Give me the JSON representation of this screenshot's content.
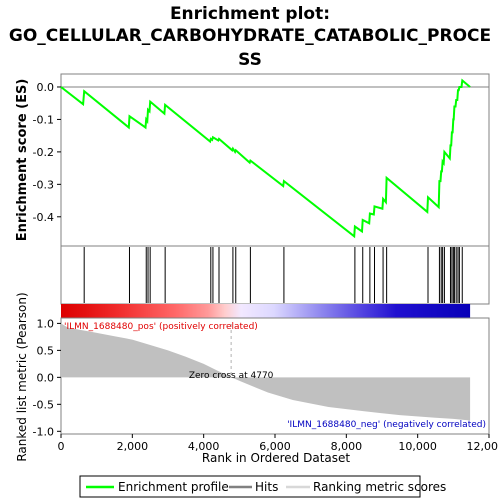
{
  "chart_data": {
    "type": "line",
    "title_lines": [
      "Enrichment plot:",
      "GO_CELLULAR_CARBOHYDRATE_CATABOLIC_PROCE",
      "SS"
    ],
    "xlabel": "Rank in Ordered Dataset",
    "xlim": [
      0,
      12000
    ],
    "x_ticks": [
      "0",
      "2,000",
      "4,000",
      "6,000",
      "8,000",
      "10,000",
      "12,00"
    ],
    "x_tick_values": [
      0,
      2000,
      4000,
      6000,
      8000,
      10000,
      12000
    ],
    "n_genes": 11470,
    "es_panel": {
      "ylabel": "Enrichment score (ES)",
      "ylim": [
        -0.49,
        0.04
      ],
      "y_ticks": [
        "0.0",
        "-0.1",
        "-0.2",
        "-0.3",
        "-0.4"
      ],
      "y_tick_values": [
        0.0,
        -0.1,
        -0.2,
        -0.3,
        -0.4
      ],
      "zero_line": true,
      "color": "#00ff00",
      "hits": [
        650,
        1920,
        2390,
        2440,
        2500,
        2920,
        4200,
        4260,
        4430,
        4820,
        4900,
        5310,
        6250,
        8240,
        8460,
        8660,
        8790,
        9030,
        9130,
        10290,
        10610,
        10660,
        10700,
        10750,
        10920,
        10960,
        11000,
        11030,
        11080,
        11130,
        11170,
        11250
      ],
      "x": [
        0,
        620,
        650,
        1900,
        1920,
        2370,
        2390,
        2420,
        2440,
        2480,
        2500,
        2900,
        2920,
        4180,
        4200,
        4240,
        4260,
        4410,
        4430,
        4800,
        4820,
        4880,
        4900,
        5290,
        5310,
        6230,
        6250,
        8220,
        8240,
        8440,
        8460,
        8640,
        8660,
        8770,
        8790,
        9010,
        9030,
        9110,
        9130,
        10270,
        10290,
        10590,
        10610,
        10640,
        10660,
        10680,
        10700,
        10730,
        10750,
        10900,
        10920,
        10940,
        10960,
        10980,
        11000,
        11010,
        11030,
        11060,
        11080,
        11110,
        11130,
        11150,
        11170,
        11230,
        11250,
        11470
      ],
      "y": [
        0.0,
        -0.053,
        -0.013,
        -0.125,
        -0.09,
        -0.125,
        -0.1,
        -0.105,
        -0.07,
        -0.075,
        -0.045,
        -0.082,
        -0.055,
        -0.168,
        -0.16,
        -0.163,
        -0.155,
        -0.165,
        -0.16,
        -0.195,
        -0.19,
        -0.2,
        -0.195,
        -0.233,
        -0.227,
        -0.305,
        -0.29,
        -0.46,
        -0.43,
        -0.445,
        -0.41,
        -0.42,
        -0.39,
        -0.393,
        -0.368,
        -0.375,
        -0.345,
        -0.355,
        -0.28,
        -0.385,
        -0.34,
        -0.37,
        -0.29,
        -0.29,
        -0.26,
        -0.26,
        -0.23,
        -0.235,
        -0.2,
        -0.22,
        -0.18,
        -0.18,
        -0.14,
        -0.14,
        -0.1,
        -0.1,
        -0.06,
        -0.06,
        -0.04,
        -0.04,
        -0.01,
        -0.01,
        0.0,
        0.0,
        0.02,
        0.0
      ]
    },
    "metric_panel": {
      "ylabel_lines": [
        "Ranked list metric (Pearson)"
      ],
      "ylim": [
        -1.05,
        1.1
      ],
      "y_ticks": [
        "1.0",
        "0.5",
        "0.0",
        "-0.5",
        "-1.0"
      ],
      "y_tick_values": [
        1.0,
        0.5,
        0.0,
        -0.5,
        -1.0
      ],
      "pos_label": "'ILMN_1688480_pos' (positively correlated)",
      "neg_label": "'ILMN_1688480_neg' (negatively correlated)",
      "zero_cross_label": "Zero cross at 4770",
      "zero_cross": 4770,
      "curve_x": [
        0,
        200,
        800,
        1500,
        2000,
        2500,
        3000,
        3500,
        4000,
        4400,
        4770,
        5200,
        5800,
        6500,
        7500,
        8500,
        9500,
        10500,
        11000,
        11470
      ],
      "curve_y": [
        1.0,
        0.92,
        0.85,
        0.76,
        0.7,
        0.6,
        0.5,
        0.38,
        0.25,
        0.12,
        0.0,
        -0.12,
        -0.28,
        -0.42,
        -0.55,
        -0.63,
        -0.7,
        -0.75,
        -0.77,
        -0.8
      ],
      "fill_color": "#c0c0c0"
    },
    "legend": {
      "items": [
        "Enrichment profile",
        "Hits",
        "Ranking metric scores"
      ],
      "colors": [
        "#00ff00",
        "#808080",
        "#d8d8d8"
      ],
      "placement": "bottom"
    }
  }
}
